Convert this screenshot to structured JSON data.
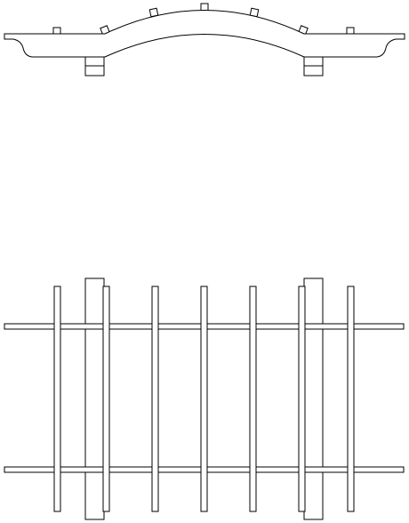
{
  "drawing": {
    "line_color": "#000000",
    "background": "#ffffff",
    "views": [
      "elevation",
      "plan"
    ],
    "elevation": {
      "arched_beam_count": 1,
      "post_count": 2,
      "rafter_count": 7
    },
    "plan": {
      "beam_count": 2,
      "post_count": 2,
      "rafter_count": 7
    }
  }
}
